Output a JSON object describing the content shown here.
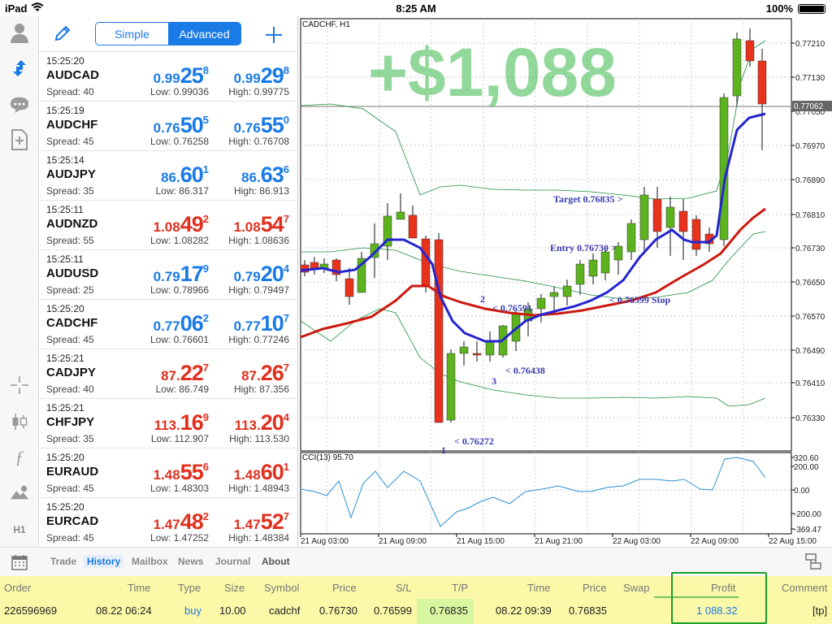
{
  "status_bar": {
    "device": "iPad",
    "time": "8:25 AM",
    "battery": "100%"
  },
  "left_toolbar": {
    "icons": [
      "account-icon",
      "trade-arrows-icon",
      "chat-icon",
      "new-document-icon",
      "crosshair-icon",
      "candlestick-icon",
      "function-icon",
      "objects-icon"
    ],
    "timeframe": "H1"
  },
  "quotes_header": {
    "simple_label": "Simple",
    "advanced_label": "Advanced"
  },
  "quotes": [
    {
      "time": "15:25:20",
      "symbol": "AUDCAD",
      "spread": "Spread: 40",
      "bid": {
        "a": "0.99",
        "b": "25",
        "c": "8"
      },
      "ask": {
        "a": "0.99",
        "b": "29",
        "c": "8"
      },
      "low": "Low: 0.99036",
      "high": "High: 0.99775",
      "color": "#1a7ae6"
    },
    {
      "time": "15:25:19",
      "symbol": "AUDCHF",
      "spread": "Spread: 45",
      "bid": {
        "a": "0.76",
        "b": "50",
        "c": "5"
      },
      "ask": {
        "a": "0.76",
        "b": "55",
        "c": "0"
      },
      "low": "Low: 0.76258",
      "high": "High: 0.76708",
      "color": "#1a7ae6"
    },
    {
      "time": "15:25:14",
      "symbol": "AUDJPY",
      "spread": "Spread: 35",
      "bid": {
        "a": "86.",
        "b": "60",
        "c": "1"
      },
      "ask": {
        "a": "86.",
        "b": "63",
        "c": "6"
      },
      "low": "Low: 86.317",
      "high": "High: 86.913",
      "color": "#1a7ae6"
    },
    {
      "time": "15:25:11",
      "symbol": "AUDNZD",
      "spread": "Spread: 55",
      "bid": {
        "a": "1.08",
        "b": "49",
        "c": "2"
      },
      "ask": {
        "a": "1.08",
        "b": "54",
        "c": "7"
      },
      "low": "Low: 1.08282",
      "high": "High: 1.08636",
      "color": "#e0301e"
    },
    {
      "time": "15:25:11",
      "symbol": "AUDUSD",
      "spread": "Spread: 25",
      "bid": {
        "a": "0.79",
        "b": "17",
        "c": "9"
      },
      "ask": {
        "a": "0.79",
        "b": "20",
        "c": "4"
      },
      "low": "Low: 0.78966",
      "high": "High: 0.79497",
      "color": "#1a7ae6"
    },
    {
      "time": "15:25:20",
      "symbol": "CADCHF",
      "spread": "Spread: 45",
      "bid": {
        "a": "0.77",
        "b": "06",
        "c": "2"
      },
      "ask": {
        "a": "0.77",
        "b": "10",
        "c": "7"
      },
      "low": "Low: 0.76601",
      "high": "High: 0.77246",
      "color": "#1a7ae6"
    },
    {
      "time": "15:25:21",
      "symbol": "CADJPY",
      "spread": "Spread: 40",
      "bid": {
        "a": "87.",
        "b": "22",
        "c": "7"
      },
      "ask": {
        "a": "87.",
        "b": "26",
        "c": "7"
      },
      "low": "Low: 86.749",
      "high": "High: 87.356",
      "color": "#e0301e"
    },
    {
      "time": "15:25:21",
      "symbol": "CHFJPY",
      "spread": "Spread: 35",
      "bid": {
        "a": "113.",
        "b": "16",
        "c": "9"
      },
      "ask": {
        "a": "113.",
        "b": "20",
        "c": "4"
      },
      "low": "Low: 112.907",
      "high": "High: 113.530",
      "color": "#e0301e"
    },
    {
      "time": "15:25:20",
      "symbol": "EURAUD",
      "spread": "Spread: 45",
      "bid": {
        "a": "1.48",
        "b": "55",
        "c": "6"
      },
      "ask": {
        "a": "1.48",
        "b": "60",
        "c": "1"
      },
      "low": "Low: 1.48303",
      "high": "High: 1.48943",
      "color": "#e0301e"
    },
    {
      "time": "15:25:20",
      "symbol": "EURCAD",
      "spread": "Spread: 45",
      "bid": {
        "a": "1.47",
        "b": "48",
        "c": "2"
      },
      "ask": {
        "a": "1.47",
        "b": "52",
        "c": "7"
      },
      "low": "Low: 1.47252",
      "high": "High: 1.48384",
      "color": "#e0301e"
    }
  ],
  "chart": {
    "symbol_label": "CADCHF, H1",
    "profit_overlay": "+$1,088",
    "current_price": "0.77062",
    "price_axis": [
      "0.77210",
      "0.77130",
      "0.77050",
      "0.76970",
      "0.76890",
      "0.76810",
      "0.76730",
      "0.76650",
      "0.76570",
      "0.76490",
      "0.76410",
      "0.76330"
    ],
    "annotations": {
      "target": "Target 0.76835 >",
      "entry": "Entry 0.76730 >",
      "stop": "< 0.76599 Stop",
      "point1": "1",
      "point1_price": "< 0.76272",
      "point2": "2",
      "point2_price": "< 0.76591",
      "point3": "3",
      "point3_price": "< 0.76438"
    },
    "indicator_label": "CCI(13) 95.70",
    "indicator_axis": [
      "320.60",
      "200.00",
      "0.00",
      "-200.00",
      "-369.47"
    ],
    "time_axis": [
      "21 Aug 03:00",
      "21 Aug 09:00",
      "21 Aug 15:00",
      "21 Aug 21:00",
      "22 Aug 03:00",
      "22 Aug 09:00",
      "22 Aug 15:00"
    ]
  },
  "bottom_tabs": [
    "Trade",
    "History",
    "Mailbox",
    "News",
    "Journal",
    "About"
  ],
  "history": {
    "headers": [
      "Order",
      "Time",
      "Type",
      "Size",
      "Symbol",
      "Price",
      "S/L",
      "T/P",
      "Time",
      "Price",
      "Swap",
      "Profit",
      "Comment"
    ],
    "row": {
      "order": "226596969",
      "open_time": "08.22 06:24",
      "type": "buy",
      "size": "10.00",
      "symbol": "cadchf",
      "open_price": "0.76730",
      "sl": "0.76599",
      "tp": "0.76835",
      "close_time": "08.22 09:39",
      "close_price": "0.76835",
      "swap": "",
      "profit": "1 088.32",
      "comment": "[tp]"
    }
  },
  "colors": {
    "accent": "#1a7ae6",
    "down": "#e0301e",
    "bull_candle": "#5cb31e",
    "bear_candle": "#e8321c",
    "ma_blue": "#2424d0",
    "ma_red": "#cc1a10",
    "band": "#1a8c3c",
    "profit_overlay": "#4cbf5a",
    "history_bg": "#fbf8a8"
  }
}
